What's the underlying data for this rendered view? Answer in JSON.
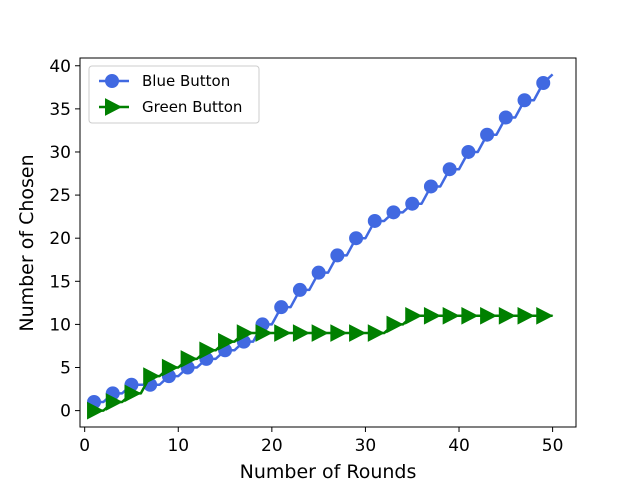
{
  "chart_data": {
    "type": "line",
    "title": "",
    "xlabel": "Number of Rounds",
    "ylabel": "Number of Chosen",
    "xlim": [
      -0.5,
      52.5
    ],
    "ylim": [
      -1.9,
      40.9
    ],
    "xticks": [
      0,
      10,
      20,
      30,
      40,
      50
    ],
    "yticks": [
      0,
      5,
      10,
      15,
      20,
      25,
      30,
      35,
      40
    ],
    "grid": false,
    "legend_position": "top-left",
    "x": [
      1,
      2,
      3,
      4,
      5,
      6,
      7,
      8,
      9,
      10,
      11,
      12,
      13,
      14,
      15,
      16,
      17,
      18,
      19,
      20,
      21,
      22,
      23,
      24,
      25,
      26,
      27,
      28,
      29,
      30,
      31,
      32,
      33,
      34,
      35,
      36,
      37,
      38,
      39,
      40,
      41,
      42,
      43,
      44,
      45,
      46,
      47,
      48,
      49,
      50
    ],
    "marker_every": 2,
    "series": [
      {
        "name": "Blue Button",
        "color": "#4169E1",
        "marker": "circle",
        "values": [
          1,
          1,
          2,
          2,
          3,
          3,
          3,
          3,
          4,
          4,
          5,
          5,
          6,
          6,
          7,
          7,
          8,
          8,
          10,
          10,
          12,
          12,
          14,
          14,
          16,
          16,
          18,
          18,
          20,
          20,
          22,
          22,
          23,
          23,
          24,
          24,
          26,
          26,
          28,
          28,
          30,
          30,
          32,
          32,
          34,
          34,
          36,
          36,
          38,
          39
        ]
      },
      {
        "name": "Green Button",
        "color": "#008000",
        "marker": "triangle-right",
        "values": [
          0,
          0,
          1,
          1,
          2,
          2,
          4,
          4,
          5,
          5,
          6,
          6,
          7,
          7,
          8,
          8,
          9,
          9,
          9,
          9,
          9,
          9,
          9,
          9,
          9,
          9,
          9,
          9,
          9,
          9,
          9,
          9,
          10,
          10,
          11,
          11,
          11,
          11,
          11,
          11,
          11,
          11,
          11,
          11,
          11,
          11,
          11,
          11,
          11,
          11
        ]
      }
    ]
  }
}
